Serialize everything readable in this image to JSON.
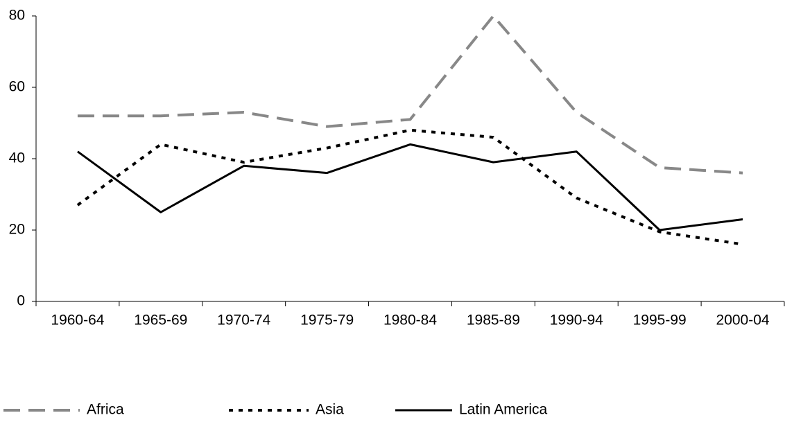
{
  "chart_data": {
    "type": "line",
    "categories": [
      "1960-64",
      "1965-69",
      "1970-74",
      "1975-79",
      "1980-84",
      "1985-89",
      "1990-94",
      "1995-99",
      "2000-04"
    ],
    "series": [
      {
        "name": "Africa",
        "color": "#888888",
        "dash": "dashed",
        "values": [
          52,
          52,
          53,
          49,
          51,
          80,
          53,
          37.5,
          36
        ]
      },
      {
        "name": "Asia",
        "color": "#000000",
        "dash": "dotted",
        "values": [
          27,
          44,
          39,
          43,
          48,
          46,
          29,
          19.5,
          16
        ]
      },
      {
        "name": "Latin America",
        "color": "#000000",
        "dash": "solid",
        "values": [
          42,
          25,
          38,
          36,
          44,
          39,
          42,
          20,
          23
        ]
      }
    ],
    "ylim": [
      0,
      80
    ],
    "yticks": [
      0,
      20,
      40,
      60,
      80
    ],
    "grid": false,
    "legend": "bottom"
  }
}
